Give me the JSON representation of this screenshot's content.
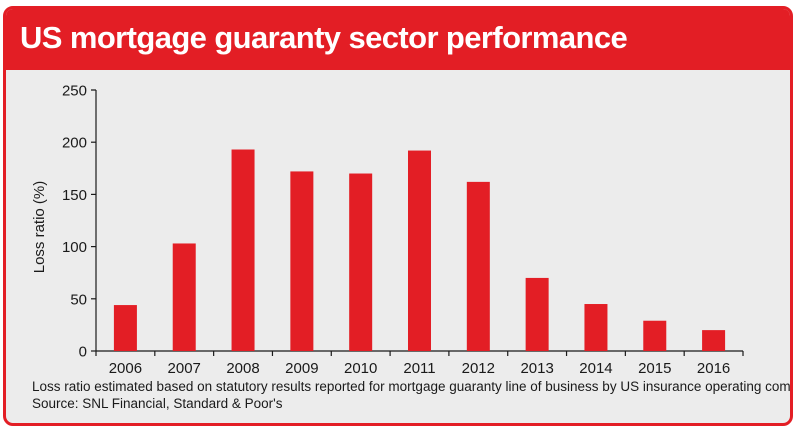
{
  "header": {
    "title": "US mortgage guaranty sector performance"
  },
  "footnote": {
    "line1": "Loss ratio estimated based on statutory results reported for mortgage guaranty line of business by US insurance operating companies",
    "line2": "Source: SNL Financial, Standard & Poor's"
  },
  "colors": {
    "accent": "#e31e25",
    "bar": "#e31e25",
    "panel": "#ececec"
  },
  "chart_data": {
    "type": "bar",
    "title": "US mortgage guaranty sector performance",
    "xlabel": "",
    "ylabel": "Loss ratio (%)",
    "categories": [
      "2006",
      "2007",
      "2008",
      "2009",
      "2010",
      "2011",
      "2012",
      "2013",
      "2014",
      "2015",
      "2016"
    ],
    "values": [
      44,
      103,
      193,
      172,
      170,
      192,
      162,
      70,
      45,
      29,
      20
    ],
    "ylim": [
      0,
      250
    ],
    "yticks": [
      0,
      50,
      100,
      150,
      200,
      250
    ],
    "grid": false,
    "legend": "none"
  }
}
